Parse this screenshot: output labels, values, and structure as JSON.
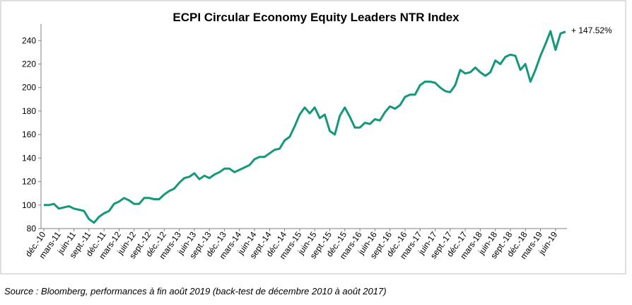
{
  "chart_data": {
    "type": "line",
    "title": "ECPI Circular Economy Equity Leaders NTR Index",
    "annotation": "+ 147.52%",
    "categories": [
      "déc.-10",
      null,
      null,
      "mars-11",
      null,
      null,
      "juin-11",
      null,
      null,
      "sept.-11",
      null,
      null,
      "déc.-11",
      null,
      null,
      "mars-12",
      null,
      null,
      "juin-12",
      null,
      null,
      "sept.-12",
      null,
      null,
      "déc.-12",
      null,
      null,
      "mars-13",
      null,
      null,
      "juin-13",
      null,
      null,
      "sept.-13",
      null,
      null,
      "déc.-13",
      null,
      null,
      "mars-14",
      null,
      null,
      "juin-14",
      null,
      null,
      "sept.-14",
      null,
      null,
      "déc.-14",
      null,
      null,
      "mars-15",
      null,
      null,
      "juin-15",
      null,
      null,
      "sept.-15",
      null,
      null,
      "déc.-15",
      null,
      null,
      "mars-16",
      null,
      null,
      "juin-16",
      null,
      null,
      "sept.-16",
      null,
      null,
      "déc.-16",
      null,
      null,
      "mars-17",
      null,
      null,
      "juin-17",
      null,
      null,
      "sept.-17",
      null,
      null,
      "déc.-17",
      null,
      null,
      "mars-18",
      null,
      null,
      "juin-18",
      null,
      null,
      "sept.-18",
      null,
      null,
      "déc.-18",
      null,
      null,
      "mars-19",
      null,
      null,
      "juin-19",
      null,
      null
    ],
    "values": [
      100,
      100,
      101,
      97,
      98,
      99,
      97,
      96,
      95,
      88,
      85,
      90,
      93,
      95,
      101,
      103,
      106,
      104,
      101,
      101,
      106,
      106,
      105,
      105,
      109,
      112,
      114,
      119,
      123,
      124,
      127,
      122,
      125,
      123,
      126,
      128,
      131,
      131,
      128,
      130,
      132,
      134,
      139,
      141,
      141,
      144,
      147,
      148,
      155,
      158,
      167,
      177,
      183,
      178,
      183,
      174,
      177,
      163,
      160,
      176,
      183,
      175,
      166,
      166,
      170,
      169,
      173,
      172,
      179,
      184,
      182,
      185,
      192,
      194,
      194,
      202,
      205,
      205,
      204,
      200,
      197,
      196,
      202,
      215,
      212,
      213,
      217,
      213,
      210,
      213,
      223,
      220,
      226,
      228,
      227,
      215,
      220,
      205,
      215,
      227,
      237,
      248,
      232,
      246,
      247.52
    ],
    "color": "#14987a",
    "ylim": [
      80,
      254
    ],
    "yticks": [
      80,
      100,
      120,
      140,
      160,
      180,
      200,
      220,
      240
    ],
    "grid": false
  },
  "source": "Source : Bloomberg, performances à fin août 2019 (back-test de décembre 2010 à août 2017)"
}
